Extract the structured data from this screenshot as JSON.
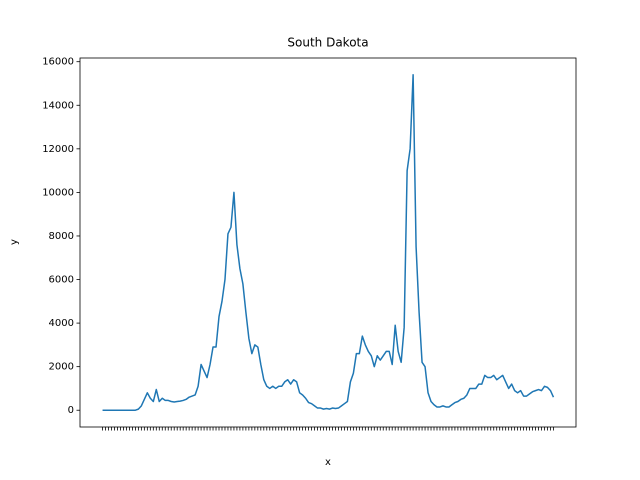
{
  "chart_data": {
    "type": "line",
    "title": "South Dakota",
    "xlabel": "x",
    "ylabel": "y",
    "categories": [
      null,
      null,
      null,
      null,
      null,
      null,
      null,
      null,
      null,
      null,
      null,
      null,
      null,
      null,
      null,
      null,
      null,
      null,
      null,
      null,
      null,
      null,
      null,
      null,
      null,
      null,
      null,
      null,
      null,
      null,
      null,
      null,
      null,
      null,
      null,
      null,
      null,
      null,
      null,
      null,
      null,
      null,
      null,
      null,
      null,
      null,
      null,
      null,
      null,
      null,
      null,
      null,
      null,
      null,
      null,
      null,
      null,
      null,
      null,
      null,
      null,
      null,
      null,
      null,
      null,
      null,
      null,
      null,
      null,
      null,
      null,
      null,
      null,
      null,
      null,
      null,
      null,
      null,
      null,
      null,
      null,
      null,
      null,
      null,
      null,
      null,
      null,
      null,
      null,
      null,
      null,
      null,
      null,
      null,
      null,
      null,
      null,
      null,
      null,
      null,
      null,
      null,
      null,
      null,
      null,
      null,
      null,
      null,
      null,
      null,
      null,
      null,
      null,
      null,
      null,
      null,
      null,
      null,
      null,
      null,
      null,
      null,
      null,
      null,
      null,
      null,
      null,
      null,
      null,
      null,
      null,
      null,
      null,
      null,
      null,
      null,
      null,
      null,
      null,
      null,
      null,
      null,
      null,
      null,
      null,
      null,
      null,
      null,
      null,
      null,
      null,
      null
    ],
    "values": [
      0,
      0,
      0,
      0,
      0,
      0,
      0,
      0,
      0,
      0,
      0,
      0,
      50,
      200,
      500,
      800,
      550,
      400,
      950,
      400,
      550,
      450,
      450,
      400,
      380,
      400,
      420,
      450,
      500,
      600,
      650,
      700,
      1100,
      2100,
      1800,
      1500,
      2100,
      2900,
      2900,
      4300,
      5000,
      6000,
      8100,
      8400,
      10000,
      7600,
      6500,
      5800,
      4500,
      3300,
      2600,
      3000,
      2900,
      2100,
      1400,
      1100,
      1000,
      1100,
      1000,
      1100,
      1100,
      1300,
      1400,
      1200,
      1400,
      1300,
      800,
      700,
      550,
      350,
      300,
      200,
      100,
      100,
      50,
      80,
      50,
      100,
      80,
      100,
      200,
      300,
      400,
      1300,
      1700,
      2600,
      2600,
      3400,
      3000,
      2700,
      2500,
      2000,
      2500,
      2300,
      2500,
      2700,
      2700,
      2100,
      3900,
      2700,
      2200,
      3800,
      11000,
      12000,
      15400,
      7500,
      4500,
      2200,
      2000,
      800,
      400,
      250,
      150,
      150,
      200,
      150,
      150,
      250,
      350,
      400,
      500,
      550,
      700,
      1000,
      1000,
      1000,
      1200,
      1200,
      1600,
      1500,
      1500,
      1600,
      1400,
      1500,
      1600,
      1300,
      1000,
      1200,
      900,
      800,
      900,
      650,
      650,
      750,
      850,
      900,
      950,
      900,
      1100,
      1050,
      900,
      600
    ],
    "color": "#1f77b4",
    "ylim": [
      -770,
      16170
    ],
    "yticks": [
      0,
      2000,
      4000,
      6000,
      8000,
      10000,
      12000,
      14000,
      16000
    ]
  }
}
